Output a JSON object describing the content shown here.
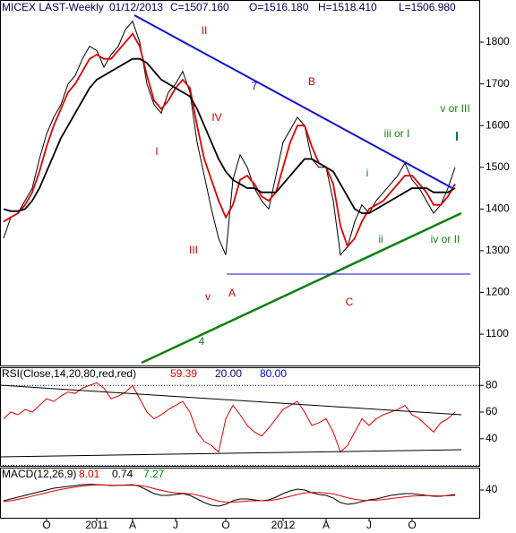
{
  "chart_data": [
    {
      "type": "line",
      "title": "MICEX LAST-Weekly",
      "date": "01/12/2013",
      "info": [
        "C=1507.160",
        "O=1516.180",
        "H=1518.410",
        "L=1506.980"
      ],
      "categories": [
        null,
        null,
        null,
        null,
        null,
        null,
        "O",
        null,
        null,
        null,
        null,
        null,
        null,
        "2011",
        null,
        null,
        null,
        null,
        "A",
        null,
        null,
        null,
        null,
        null,
        "J",
        null,
        null,
        null,
        null,
        null,
        null,
        "O",
        null,
        null,
        null,
        null,
        null,
        null,
        null,
        "2012",
        null,
        null,
        null,
        null,
        null,
        "A",
        null,
        null,
        null,
        null,
        null,
        "J",
        null,
        null,
        null,
        null,
        null,
        "O",
        null,
        null,
        null,
        null,
        null,
        null
      ],
      "series": [
        {
          "name": "MICEX LAST",
          "color": "#000000",
          "values": [
            1330,
            1380,
            1390,
            1420,
            1450,
            1520,
            1580,
            1620,
            1650,
            1700,
            1720,
            1760,
            1790,
            1780,
            1740,
            1770,
            1790,
            1830,
            1850,
            1800,
            1700,
            1650,
            1630,
            1680,
            1700,
            1730,
            1680,
            1560,
            1480,
            1400,
            1330,
            1290,
            1470,
            1530,
            1500,
            1450,
            1420,
            1400,
            1480,
            1560,
            1590,
            1620,
            1600,
            1520,
            1500,
            1500,
            1420,
            1290,
            1310,
            1370,
            1410,
            1390,
            1420,
            1440,
            1460,
            1480,
            1510,
            1470,
            1450,
            1420,
            1390,
            1410,
            1450,
            1500
          ]
        },
        {
          "color": "#e00000",
          "values": [
            1370,
            1380,
            1390,
            1410,
            1440,
            1490,
            1550,
            1600,
            1640,
            1680,
            1700,
            1730,
            1760,
            1770,
            1760,
            1760,
            1780,
            1800,
            1820,
            1790,
            1720,
            1660,
            1640,
            1660,
            1690,
            1710,
            1690,
            1600,
            1520,
            1470,
            1420,
            1380,
            1410,
            1470,
            1480,
            1460,
            1430,
            1420,
            1440,
            1500,
            1560,
            1600,
            1600,
            1550,
            1510,
            1500,
            1460,
            1360,
            1310,
            1330,
            1370,
            1400,
            1410,
            1420,
            1440,
            1460,
            1480,
            1480,
            1460,
            1440,
            1410,
            1410,
            1430,
            1460
          ]
        },
        {
          "color": "#000000",
          "values": [
            1400,
            1395,
            1395,
            1400,
            1420,
            1450,
            1490,
            1530,
            1570,
            1600,
            1630,
            1660,
            1690,
            1710,
            1720,
            1730,
            1740,
            1750,
            1760,
            1760,
            1750,
            1730,
            1710,
            1700,
            1690,
            1680,
            1670,
            1640,
            1600,
            1560,
            1520,
            1490,
            1470,
            1460,
            1450,
            1450,
            1440,
            1440,
            1440,
            1460,
            1480,
            1500,
            1520,
            1520,
            1510,
            1500,
            1490,
            1460,
            1430,
            1400,
            1390,
            1390,
            1400,
            1410,
            1420,
            1430,
            1440,
            1450,
            1450,
            1450,
            1440,
            1440,
            1440,
            1450
          ]
        }
      ],
      "ylim": [
        1025,
        1901
      ],
      "yticks": [
        1100,
        1200,
        1300,
        1400,
        1500,
        1600,
        1700,
        1800
      ],
      "annotations": [
        {
          "text": "7",
          "color": "#1010d0"
        },
        {
          "text": "4",
          "color": "#108010"
        },
        {
          "text": "II",
          "color": "#d00000"
        },
        {
          "text": "I",
          "color": "#d00000"
        },
        {
          "text": "IV",
          "color": "#d00000"
        },
        {
          "text": "III",
          "color": "#d00000"
        },
        {
          "text": "v",
          "color": "#d00000"
        },
        {
          "text": "A",
          "color": "#d00000"
        },
        {
          "text": "B",
          "color": "#d00000"
        },
        {
          "text": "C",
          "color": "#d00000"
        },
        {
          "text": "i",
          "color": "#108010"
        },
        {
          "text": "ii",
          "color": "#108010"
        },
        {
          "text": "iii or I",
          "color": "#108010"
        },
        {
          "text": "iv or II",
          "color": "#108010"
        },
        {
          "text": "v or III",
          "color": "#108010"
        }
      ]
    },
    {
      "type": "line",
      "title": "RSI(Close,14,20,80,red,red)",
      "info": [
        {
          "text": "59.39",
          "color": "#e00000"
        },
        {
          "text": "20.00",
          "color": "#000080"
        },
        {
          "text": "80.00",
          "color": "#0000e0"
        }
      ],
      "series": [
        {
          "color": "#e00000",
          "values": [
            55,
            60,
            58,
            62,
            60,
            65,
            70,
            68,
            72,
            75,
            74,
            78,
            80,
            82,
            78,
            70,
            72,
            75,
            80,
            70,
            60,
            55,
            58,
            62,
            65,
            68,
            60,
            45,
            38,
            35,
            30,
            55,
            65,
            58,
            50,
            45,
            42,
            48,
            55,
            62,
            65,
            68,
            60,
            50,
            52,
            55,
            45,
            30,
            35,
            45,
            55,
            50,
            55,
            58,
            60,
            62,
            65,
            58,
            55,
            50,
            45,
            52,
            55,
            60
          ]
        }
      ],
      "ylim": [
        19.7,
        93.6
      ],
      "yticks": [
        40,
        60,
        80
      ],
      "levels": [
        20,
        80
      ]
    },
    {
      "type": "line",
      "title": "MACD(12,26,9)",
      "info": [
        {
          "text": "8.01",
          "color": "#e00000"
        },
        {
          "text": "0.74",
          "color": "#000000"
        },
        {
          "text": "7.27",
          "color": "#008000"
        }
      ],
      "series": [
        {
          "color": "#000000",
          "values": [
            -20,
            -10,
            0,
            10,
            20,
            30,
            40,
            50,
            55,
            60,
            65,
            70,
            72,
            70,
            68,
            65,
            66,
            68,
            70,
            60,
            40,
            20,
            10,
            10,
            15,
            20,
            10,
            -10,
            -30,
            -45,
            -50,
            -40,
            -20,
            -10,
            -10,
            -15,
            -20,
            -15,
            0,
            20,
            35,
            45,
            40,
            25,
            15,
            10,
            -5,
            -30,
            -40,
            -35,
            -25,
            -15,
            -10,
            0,
            10,
            15,
            20,
            20,
            15,
            10,
            5,
            5,
            10,
            15
          ]
        },
        {
          "color": "#e00000",
          "values": [
            -25,
            -20,
            -12,
            -4,
            6,
            15,
            25,
            35,
            43,
            50,
            56,
            62,
            66,
            68,
            68,
            67,
            66,
            66,
            67,
            65,
            58,
            48,
            38,
            30,
            24,
            22,
            19,
            12,
            2,
            -10,
            -22,
            -28,
            -28,
            -25,
            -22,
            -20,
            -20,
            -19,
            -14,
            -5,
            5,
            15,
            24,
            27,
            26,
            23,
            18,
            8,
            -3,
            -12,
            -17,
            -18,
            -17,
            -13,
            -8,
            -3,
            2,
            6,
            8,
            9,
            8,
            7,
            8,
            10
          ]
        }
      ],
      "ylim": [
        -115,
        165
      ],
      "yticks": [
        40
      ]
    }
  ]
}
